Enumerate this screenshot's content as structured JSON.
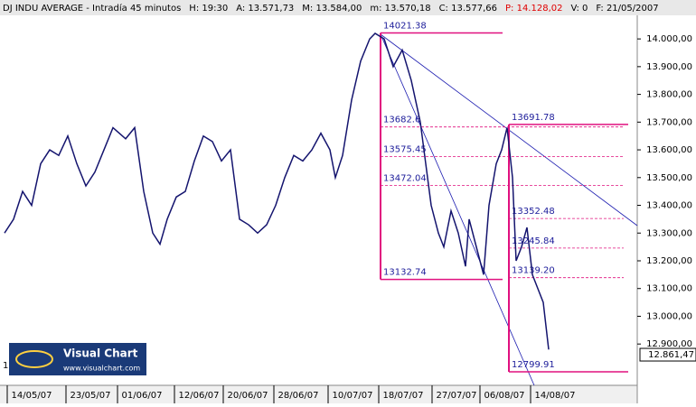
{
  "chart_data": {
    "type": "line",
    "header": [
      "DJ INDU AVERAGE - Intradía 45 minutos",
      "H: 19:30",
      "A: 13.571,73",
      "M: 13.584,00",
      "m: 13.570,18",
      "C: 13.577,66",
      "P: 14.128,02",
      "V: 0",
      "F: 21/05/2007"
    ],
    "x": [
      0,
      5,
      10,
      15,
      20,
      25,
      30,
      35,
      40,
      45,
      50,
      55,
      60,
      67,
      72,
      77,
      82,
      86,
      90,
      95,
      100,
      105,
      110,
      115,
      120,
      125,
      130,
      135,
      140,
      145,
      150,
      155,
      160,
      165,
      170,
      175,
      180,
      183,
      187,
      192,
      197,
      202,
      205,
      210,
      215,
      220,
      225,
      230,
      233,
      236,
      240,
      243,
      247,
      251,
      255,
      257,
      261,
      265,
      268,
      272,
      275,
      278,
      281,
      283,
      286,
      289,
      292,
      295,
      298,
      301
    ],
    "series": [
      {
        "name": "DJ INDU AVERAGE",
        "color": "#14146e",
        "values": [
          13300,
          13350,
          13450,
          13400,
          13550,
          13600,
          13580,
          13650,
          13550,
          13470,
          13520,
          13600,
          13680,
          13640,
          13680,
          13450,
          13300,
          13260,
          13350,
          13430,
          13450,
          13560,
          13650,
          13630,
          13560,
          13600,
          13350,
          13330,
          13300,
          13330,
          13400,
          13500,
          13580,
          13560,
          13600,
          13660,
          13600,
          13500,
          13580,
          13780,
          13920,
          14000,
          14020,
          14000,
          13900,
          13960,
          13850,
          13700,
          13550,
          13400,
          13300,
          13250,
          13380,
          13300,
          13180,
          13350,
          13250,
          13150,
          13400,
          13550,
          13600,
          13680,
          13500,
          13200,
          13250,
          13320,
          13150,
          13100,
          13050,
          12880
        ]
      }
    ],
    "xlim": [
      0,
      350
    ],
    "xticks": [
      {
        "value": 15,
        "label": "14/05/07"
      },
      {
        "value": 47.5,
        "label": "23/05/07"
      },
      {
        "value": 76,
        "label": "01/06/07"
      },
      {
        "value": 107.5,
        "label": "12/06/07"
      },
      {
        "value": 134.5,
        "label": "20/06/07"
      },
      {
        "value": 162.5,
        "label": "28/06/07"
      },
      {
        "value": 192.5,
        "label": "10/07/07"
      },
      {
        "value": 220.5,
        "label": "18/07/07"
      },
      {
        "value": 250,
        "label": "27/07/07"
      },
      {
        "value": 276.5,
        "label": "06/08/07"
      },
      {
        "value": 304.5,
        "label": "14/08/07"
      }
    ],
    "ylim": [
      12790,
      14085
    ],
    "yticks": [
      {
        "value": 14000,
        "label": "14.000,00"
      },
      {
        "value": 13900,
        "label": "13.900,00"
      },
      {
        "value": 13800,
        "label": "13.800,00"
      },
      {
        "value": 13700,
        "label": "13.700,00"
      },
      {
        "value": 13600,
        "label": "13.600,00"
      },
      {
        "value": 13500,
        "label": "13.500,00"
      },
      {
        "value": 13400,
        "label": "13.400,00"
      },
      {
        "value": 13300,
        "label": "13.300,00"
      },
      {
        "value": 13200,
        "label": "13.200,00"
      },
      {
        "value": 13100,
        "label": "13.100,00"
      },
      {
        "value": 13000,
        "label": "13.000,00"
      },
      {
        "value": 12900,
        "label": "12.900,00"
      }
    ],
    "last_price": {
      "value": 12861.47,
      "label": "12.861,47"
    },
    "fib_1": [
      {
        "value": 14021.38,
        "label": "14021.38"
      },
      {
        "value": 13682.6,
        "label": "13682.6"
      },
      {
        "value": 13575.45,
        "label": "13575.45"
      },
      {
        "value": 13472.04,
        "label": "13472.04"
      },
      {
        "value": 13132.74,
        "label": "13132.74"
      }
    ],
    "fib_2": [
      {
        "value": 13691.78,
        "label": "13691.78"
      },
      {
        "value": 13352.48,
        "label": "13352.48"
      },
      {
        "value": 13245.84,
        "label": "13245.84"
      },
      {
        "value": 13139.2,
        "label": "13139.20"
      },
      {
        "value": 12799.91,
        "label": "12799.91"
      }
    ],
    "left_fragment": "1",
    "logo": {
      "title": "Visual Chart",
      "url": "www.visualchart.com"
    }
  }
}
